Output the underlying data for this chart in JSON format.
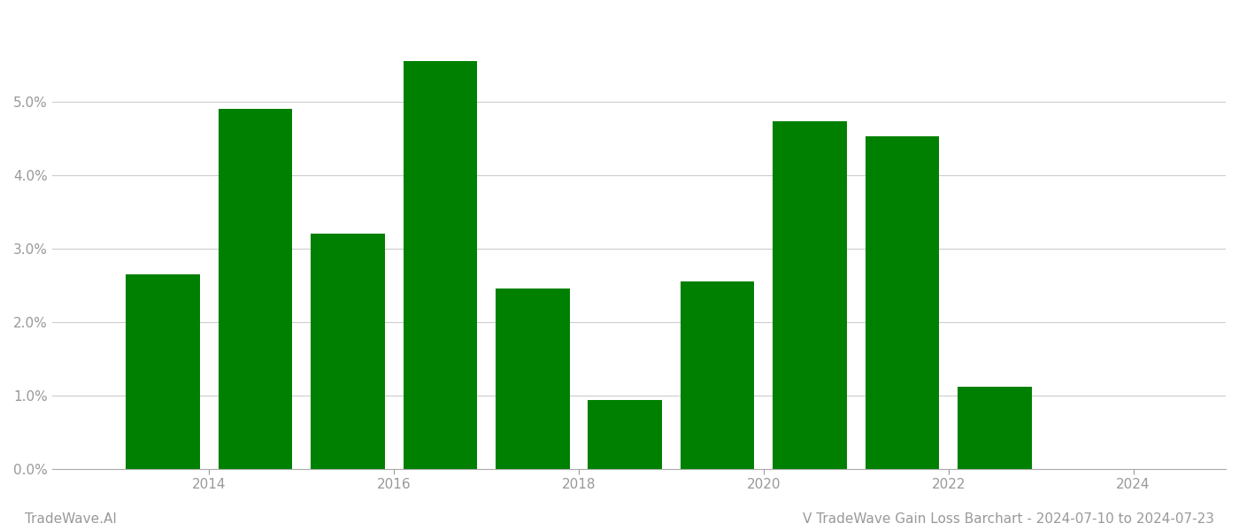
{
  "years": [
    2013,
    2014,
    2015,
    2016,
    2017,
    2018,
    2019,
    2020,
    2021,
    2022,
    2023
  ],
  "values": [
    2.65,
    4.9,
    3.2,
    5.55,
    2.45,
    0.93,
    2.55,
    4.73,
    4.52,
    1.12,
    0.0
  ],
  "bar_color": "#008000",
  "background_color": "#ffffff",
  "title": "V TradeWave Gain Loss Barchart - 2024-07-10 to 2024-07-23",
  "bottom_left_text": "TradeWave.AI",
  "ylim": [
    0,
    6.2
  ],
  "yticks": [
    0.0,
    1.0,
    2.0,
    3.0,
    4.0,
    5.0
  ],
  "xlim_left": 2012.3,
  "xlim_right": 2025.0,
  "xtick_positions": [
    2014,
    2016,
    2018,
    2020,
    2022,
    2024
  ],
  "grid_color": "#cccccc",
  "tick_color": "#999999",
  "label_fontsize": 11,
  "title_fontsize": 11,
  "bar_width": 0.8
}
